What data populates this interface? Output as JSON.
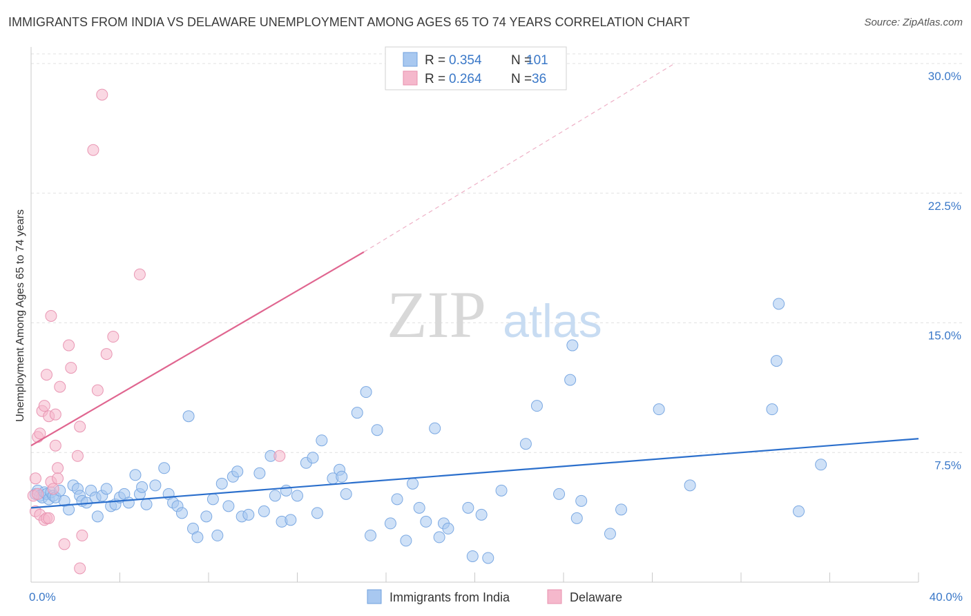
{
  "title": "IMMIGRANTS FROM INDIA VS DELAWARE UNEMPLOYMENT AMONG AGES 65 TO 74 YEARS CORRELATION CHART",
  "source": "Source: ZipAtlas.com",
  "watermark": {
    "zip": "ZIP",
    "atlas": "atlas"
  },
  "colors": {
    "blue": "#a8c8f0",
    "blue_line": "#2b6fcc",
    "pink": "#f5b8cc",
    "pink_line": "#e06690",
    "value_text": "#3a78c8"
  },
  "chart_data": {
    "type": "scatter",
    "title": "IMMIGRANTS FROM INDIA VS DELAWARE UNEMPLOYMENT AMONG AGES 65 TO 74 YEARS CORRELATION CHART",
    "xlabel": "",
    "ylabel": "Unemployment Among Ages 65 to 74 years",
    "xlim": [
      0,
      40
    ],
    "ylim": [
      0,
      30.8
    ],
    "x_tick_labels": [
      "0.0%",
      "40.0%"
    ],
    "y_ticks": [
      7.5,
      15.0,
      22.5,
      30.0
    ],
    "y_tick_labels": [
      "7.5%",
      "15.0%",
      "22.5%",
      "30.0%"
    ],
    "legend": [
      {
        "r_label": "R = ",
        "r_value": "0.354",
        "n_label": "N = ",
        "n_value": "101"
      },
      {
        "r_label": "R = ",
        "r_value": "0.264",
        "n_label": "N = ",
        "n_value": "36"
      }
    ],
    "series": [
      {
        "name": "Immigrants from India",
        "color": "#a8c8f0",
        "trend": {
          "x0": 0,
          "y0": 4.3,
          "x1": 40,
          "y1": 8.3,
          "dashed_to": null
        },
        "points": [
          [
            0.2,
            5.1
          ],
          [
            0.3,
            5.3
          ],
          [
            0.4,
            5.0
          ],
          [
            0.5,
            4.9
          ],
          [
            0.6,
            5.2
          ],
          [
            0.7,
            5.1
          ],
          [
            0.8,
            4.8
          ],
          [
            0.9,
            5.2
          ],
          [
            1.0,
            5.0
          ],
          [
            1.1,
            4.9
          ],
          [
            1.3,
            5.3
          ],
          [
            1.5,
            4.7
          ],
          [
            1.7,
            4.2
          ],
          [
            1.9,
            5.6
          ],
          [
            2.1,
            5.4
          ],
          [
            2.2,
            5.0
          ],
          [
            2.3,
            4.7
          ],
          [
            2.5,
            4.6
          ],
          [
            2.7,
            5.3
          ],
          [
            2.9,
            4.9
          ],
          [
            3.0,
            3.8
          ],
          [
            3.2,
            5.0
          ],
          [
            3.4,
            5.4
          ],
          [
            3.6,
            4.4
          ],
          [
            3.8,
            4.5
          ],
          [
            4.0,
            4.9
          ],
          [
            4.2,
            5.1
          ],
          [
            4.4,
            4.6
          ],
          [
            4.7,
            6.2
          ],
          [
            4.9,
            5.1
          ],
          [
            5.0,
            5.5
          ],
          [
            5.2,
            4.5
          ],
          [
            5.6,
            5.6
          ],
          [
            6.0,
            6.6
          ],
          [
            6.2,
            5.1
          ],
          [
            6.4,
            4.6
          ],
          [
            6.6,
            4.4
          ],
          [
            6.8,
            4.0
          ],
          [
            7.1,
            9.6
          ],
          [
            7.3,
            3.1
          ],
          [
            7.5,
            2.6
          ],
          [
            7.9,
            3.8
          ],
          [
            8.2,
            4.8
          ],
          [
            8.4,
            2.7
          ],
          [
            8.6,
            5.7
          ],
          [
            8.9,
            4.4
          ],
          [
            9.1,
            6.1
          ],
          [
            9.3,
            6.4
          ],
          [
            9.5,
            3.8
          ],
          [
            9.8,
            3.9
          ],
          [
            10.3,
            6.3
          ],
          [
            10.5,
            4.1
          ],
          [
            10.8,
            7.3
          ],
          [
            11.0,
            5.0
          ],
          [
            11.3,
            3.5
          ],
          [
            11.5,
            5.3
          ],
          [
            11.7,
            3.6
          ],
          [
            12.0,
            5.0
          ],
          [
            12.4,
            6.9
          ],
          [
            12.7,
            7.2
          ],
          [
            12.9,
            4.0
          ],
          [
            13.1,
            8.2
          ],
          [
            13.6,
            6.0
          ],
          [
            13.9,
            6.5
          ],
          [
            14.0,
            6.1
          ],
          [
            14.2,
            5.1
          ],
          [
            14.7,
            9.8
          ],
          [
            15.1,
            11.0
          ],
          [
            15.3,
            2.7
          ],
          [
            15.6,
            8.8
          ],
          [
            16.2,
            3.4
          ],
          [
            16.5,
            4.8
          ],
          [
            16.9,
            2.4
          ],
          [
            17.2,
            5.7
          ],
          [
            17.5,
            4.3
          ],
          [
            17.8,
            3.5
          ],
          [
            18.2,
            8.9
          ],
          [
            18.4,
            2.6
          ],
          [
            18.6,
            3.4
          ],
          [
            18.8,
            3.1
          ],
          [
            19.7,
            4.3
          ],
          [
            19.9,
            1.5
          ],
          [
            20.3,
            3.9
          ],
          [
            20.6,
            1.4
          ],
          [
            21.2,
            5.3
          ],
          [
            22.3,
            8.0
          ],
          [
            22.8,
            10.2
          ],
          [
            23.8,
            5.1
          ],
          [
            24.3,
            11.7
          ],
          [
            24.4,
            13.7
          ],
          [
            24.6,
            3.7
          ],
          [
            24.8,
            4.7
          ],
          [
            26.1,
            2.8
          ],
          [
            26.6,
            4.2
          ],
          [
            28.3,
            10.0
          ],
          [
            29.7,
            5.6
          ],
          [
            33.4,
            10.0
          ],
          [
            33.6,
            12.8
          ],
          [
            33.7,
            16.1
          ],
          [
            34.6,
            4.1
          ],
          [
            35.6,
            6.8
          ]
        ]
      },
      {
        "name": "Delaware",
        "color": "#f5b8cc",
        "trend": {
          "x0": 0,
          "y0": 7.9,
          "x1": 15.0,
          "y1": 19.1,
          "dashed_to": [
            29.0,
            30.0
          ]
        },
        "points": [
          [
            0.1,
            5.0
          ],
          [
            0.2,
            4.1
          ],
          [
            0.2,
            6.0
          ],
          [
            0.3,
            8.4
          ],
          [
            0.4,
            8.6
          ],
          [
            0.4,
            3.9
          ],
          [
            0.5,
            9.9
          ],
          [
            0.6,
            10.2
          ],
          [
            0.6,
            3.6
          ],
          [
            0.7,
            3.7
          ],
          [
            0.7,
            12.0
          ],
          [
            0.8,
            9.6
          ],
          [
            0.9,
            15.4
          ],
          [
            0.9,
            5.8
          ],
          [
            1.0,
            5.4
          ],
          [
            1.1,
            9.7
          ],
          [
            1.1,
            7.9
          ],
          [
            1.2,
            6.6
          ],
          [
            1.2,
            6.0
          ],
          [
            1.3,
            11.3
          ],
          [
            1.5,
            2.2
          ],
          [
            1.7,
            13.7
          ],
          [
            1.8,
            12.4
          ],
          [
            2.1,
            7.3
          ],
          [
            2.2,
            9.0
          ],
          [
            2.2,
            0.8
          ],
          [
            2.3,
            2.7
          ],
          [
            3.0,
            11.1
          ],
          [
            3.2,
            28.2
          ],
          [
            3.4,
            13.2
          ],
          [
            3.7,
            14.2
          ],
          [
            2.8,
            25.0
          ],
          [
            4.9,
            17.8
          ],
          [
            11.2,
            7.3
          ],
          [
            0.3,
            5.1
          ],
          [
            0.8,
            3.7
          ]
        ]
      }
    ]
  },
  "legend_bottom": [
    "Immigrants from India",
    "Delaware"
  ]
}
